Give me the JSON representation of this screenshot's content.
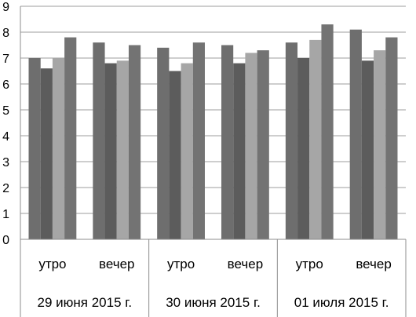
{
  "chart_data": {
    "type": "bar",
    "title": "",
    "xlabel": "",
    "ylabel": "",
    "ylim": [
      0,
      9
    ],
    "yticks": [
      0,
      1,
      2,
      3,
      4,
      5,
      6,
      7,
      8,
      9
    ],
    "ytick_labels": [
      "0",
      "1",
      "2",
      "3",
      "4",
      "5",
      "6",
      "7",
      "8",
      "9"
    ],
    "grid": "horizontal",
    "legend": "none",
    "groups": [
      {
        "label": "29 июня 2015 г.",
        "categories": [
          "утро",
          "вечер"
        ]
      },
      {
        "label": "30 июня 2015 г.",
        "categories": [
          "утро",
          "вечер"
        ]
      },
      {
        "label": "01 июля 2015 г.",
        "categories": [
          "утро",
          "вечер"
        ]
      }
    ],
    "series": [
      {
        "color": "#6e6e6e",
        "values": [
          7.0,
          7.6,
          7.4,
          7.5,
          7.6,
          8.1
        ]
      },
      {
        "color": "#5c5c5c",
        "values": [
          6.6,
          6.8,
          6.5,
          6.8,
          7.0,
          6.9
        ]
      },
      {
        "color": "#a6a6a6",
        "values": [
          7.0,
          6.9,
          6.8,
          7.2,
          7.7,
          7.3
        ]
      },
      {
        "color": "#737373",
        "values": [
          7.8,
          7.5,
          7.6,
          7.3,
          8.3,
          7.8
        ]
      }
    ],
    "colors": {
      "grid": "#9e9e9e",
      "axis": "#8c8c8c"
    }
  }
}
